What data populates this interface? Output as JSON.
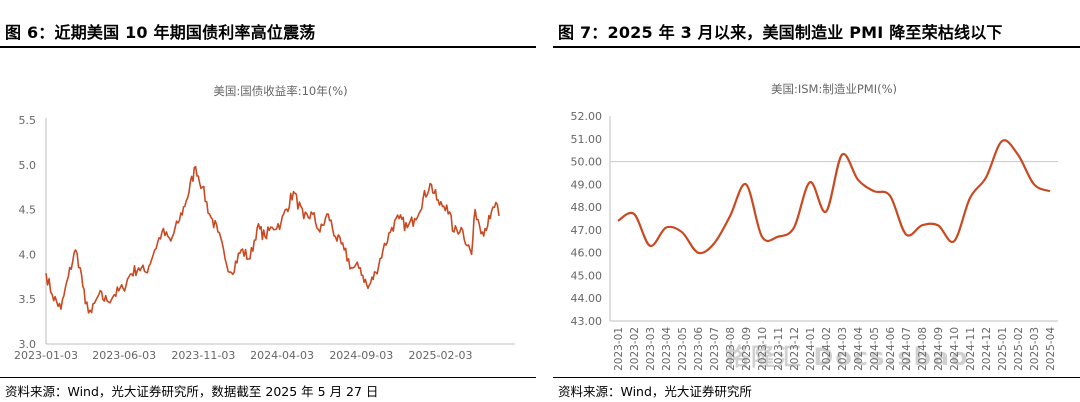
{
  "left": {
    "figure_title": "图 6：近期美国 10 年期国债利率高位震荡",
    "source": "资料来源：Wind，光大证券研究所，数据截至 2025 年 5 月 27 日"
  },
  "right": {
    "figure_title": "图 7：2025 年 3 月以来，美国制造业 PMI 降至荣枯线以下",
    "source": "资料来源：Wind，光大证券研究所"
  },
  "watermark": "格隆汇 Docs.sbao",
  "chart_data": [
    {
      "type": "line",
      "title": "美国:国债收益率:10年(%)",
      "xlabel": "",
      "ylabel": "",
      "ylim": [
        3.0,
        5.5
      ],
      "yticks": [
        "3.0",
        "3.5",
        "4.0",
        "4.5",
        "5.0",
        "5.5"
      ],
      "xticks": [
        "2023-01-03",
        "2023-06-03",
        "2023-11-03",
        "2024-04-03",
        "2024-09-03",
        "2025-02-03"
      ],
      "grid": false,
      "color": "#c94a22",
      "series": [
        {
          "x": [
            "2023-01-03",
            "2023-01-15",
            "2023-02-01",
            "2023-02-15",
            "2023-03-01",
            "2023-03-10",
            "2023-03-20",
            "2023-04-01",
            "2023-04-15",
            "2023-05-01",
            "2023-05-15",
            "2023-06-01",
            "2023-06-15",
            "2023-07-01",
            "2023-07-15",
            "2023-08-01",
            "2023-08-15",
            "2023-09-01",
            "2023-09-15",
            "2023-10-01",
            "2023-10-19",
            "2023-11-01",
            "2023-11-15",
            "2023-12-01",
            "2023-12-15",
            "2023-12-27",
            "2024-01-15",
            "2024-02-01",
            "2024-02-15",
            "2024-03-01",
            "2024-03-15",
            "2024-04-01",
            "2024-04-25",
            "2024-05-15",
            "2024-06-01",
            "2024-06-15",
            "2024-07-01",
            "2024-07-15",
            "2024-08-01",
            "2024-08-15",
            "2024-09-01",
            "2024-09-16",
            "2024-10-01",
            "2024-10-15",
            "2024-11-01",
            "2024-11-15",
            "2024-12-01",
            "2024-12-15",
            "2025-01-14",
            "2025-02-01",
            "2025-02-15",
            "2025-03-01",
            "2025-03-15",
            "2025-04-04",
            "2025-04-11",
            "2025-04-25",
            "2025-05-10",
            "2025-05-21",
            "2025-05-27"
          ],
          "y": [
            3.79,
            3.55,
            3.39,
            3.75,
            4.05,
            3.85,
            3.45,
            3.35,
            3.55,
            3.48,
            3.55,
            3.62,
            3.78,
            3.85,
            3.8,
            4.05,
            4.25,
            4.15,
            4.35,
            4.6,
            4.98,
            4.75,
            4.45,
            4.25,
            3.95,
            3.8,
            4.05,
            3.95,
            4.3,
            4.2,
            4.3,
            4.35,
            4.7,
            4.4,
            4.45,
            4.25,
            4.45,
            4.2,
            4.05,
            3.85,
            3.85,
            3.62,
            3.8,
            4.05,
            4.3,
            4.4,
            4.3,
            4.4,
            4.79,
            4.55,
            4.55,
            4.25,
            4.3,
            4.0,
            4.5,
            4.25,
            4.4,
            4.58,
            4.43
          ]
        }
      ]
    },
    {
      "type": "line",
      "title": "美国:ISM:制造业PMI(%)",
      "xlabel": "",
      "ylabel": "",
      "ylim": [
        43.0,
        52.0
      ],
      "yticks": [
        "43.00",
        "44.00",
        "45.00",
        "46.00",
        "47.00",
        "48.00",
        "49.00",
        "50.00",
        "51.00",
        "52.00"
      ],
      "reference_line": 50.0,
      "grid": false,
      "color": "#c94a22",
      "categories": [
        "2023-01",
        "2023-02",
        "2023-03",
        "2023-04",
        "2023-05",
        "2023-06",
        "2023-07",
        "2023-08",
        "2023-09",
        "2023-10",
        "2023-11",
        "2023-12",
        "2024-01",
        "2024-02",
        "2024-03",
        "2024-04",
        "2024-05",
        "2024-06",
        "2024-07",
        "2024-08",
        "2024-09",
        "2024-10",
        "2024-11",
        "2024-12",
        "2025-01",
        "2025-02",
        "2025-03",
        "2025-04"
      ],
      "series": [
        {
          "values": [
            47.4,
            47.7,
            46.3,
            47.1,
            46.9,
            46.0,
            46.4,
            47.6,
            49.0,
            46.7,
            46.7,
            47.1,
            49.1,
            47.8,
            50.3,
            49.2,
            48.7,
            48.5,
            46.8,
            47.2,
            47.2,
            46.5,
            48.4,
            49.3,
            50.9,
            50.3,
            49.0,
            48.7
          ]
        }
      ]
    }
  ]
}
